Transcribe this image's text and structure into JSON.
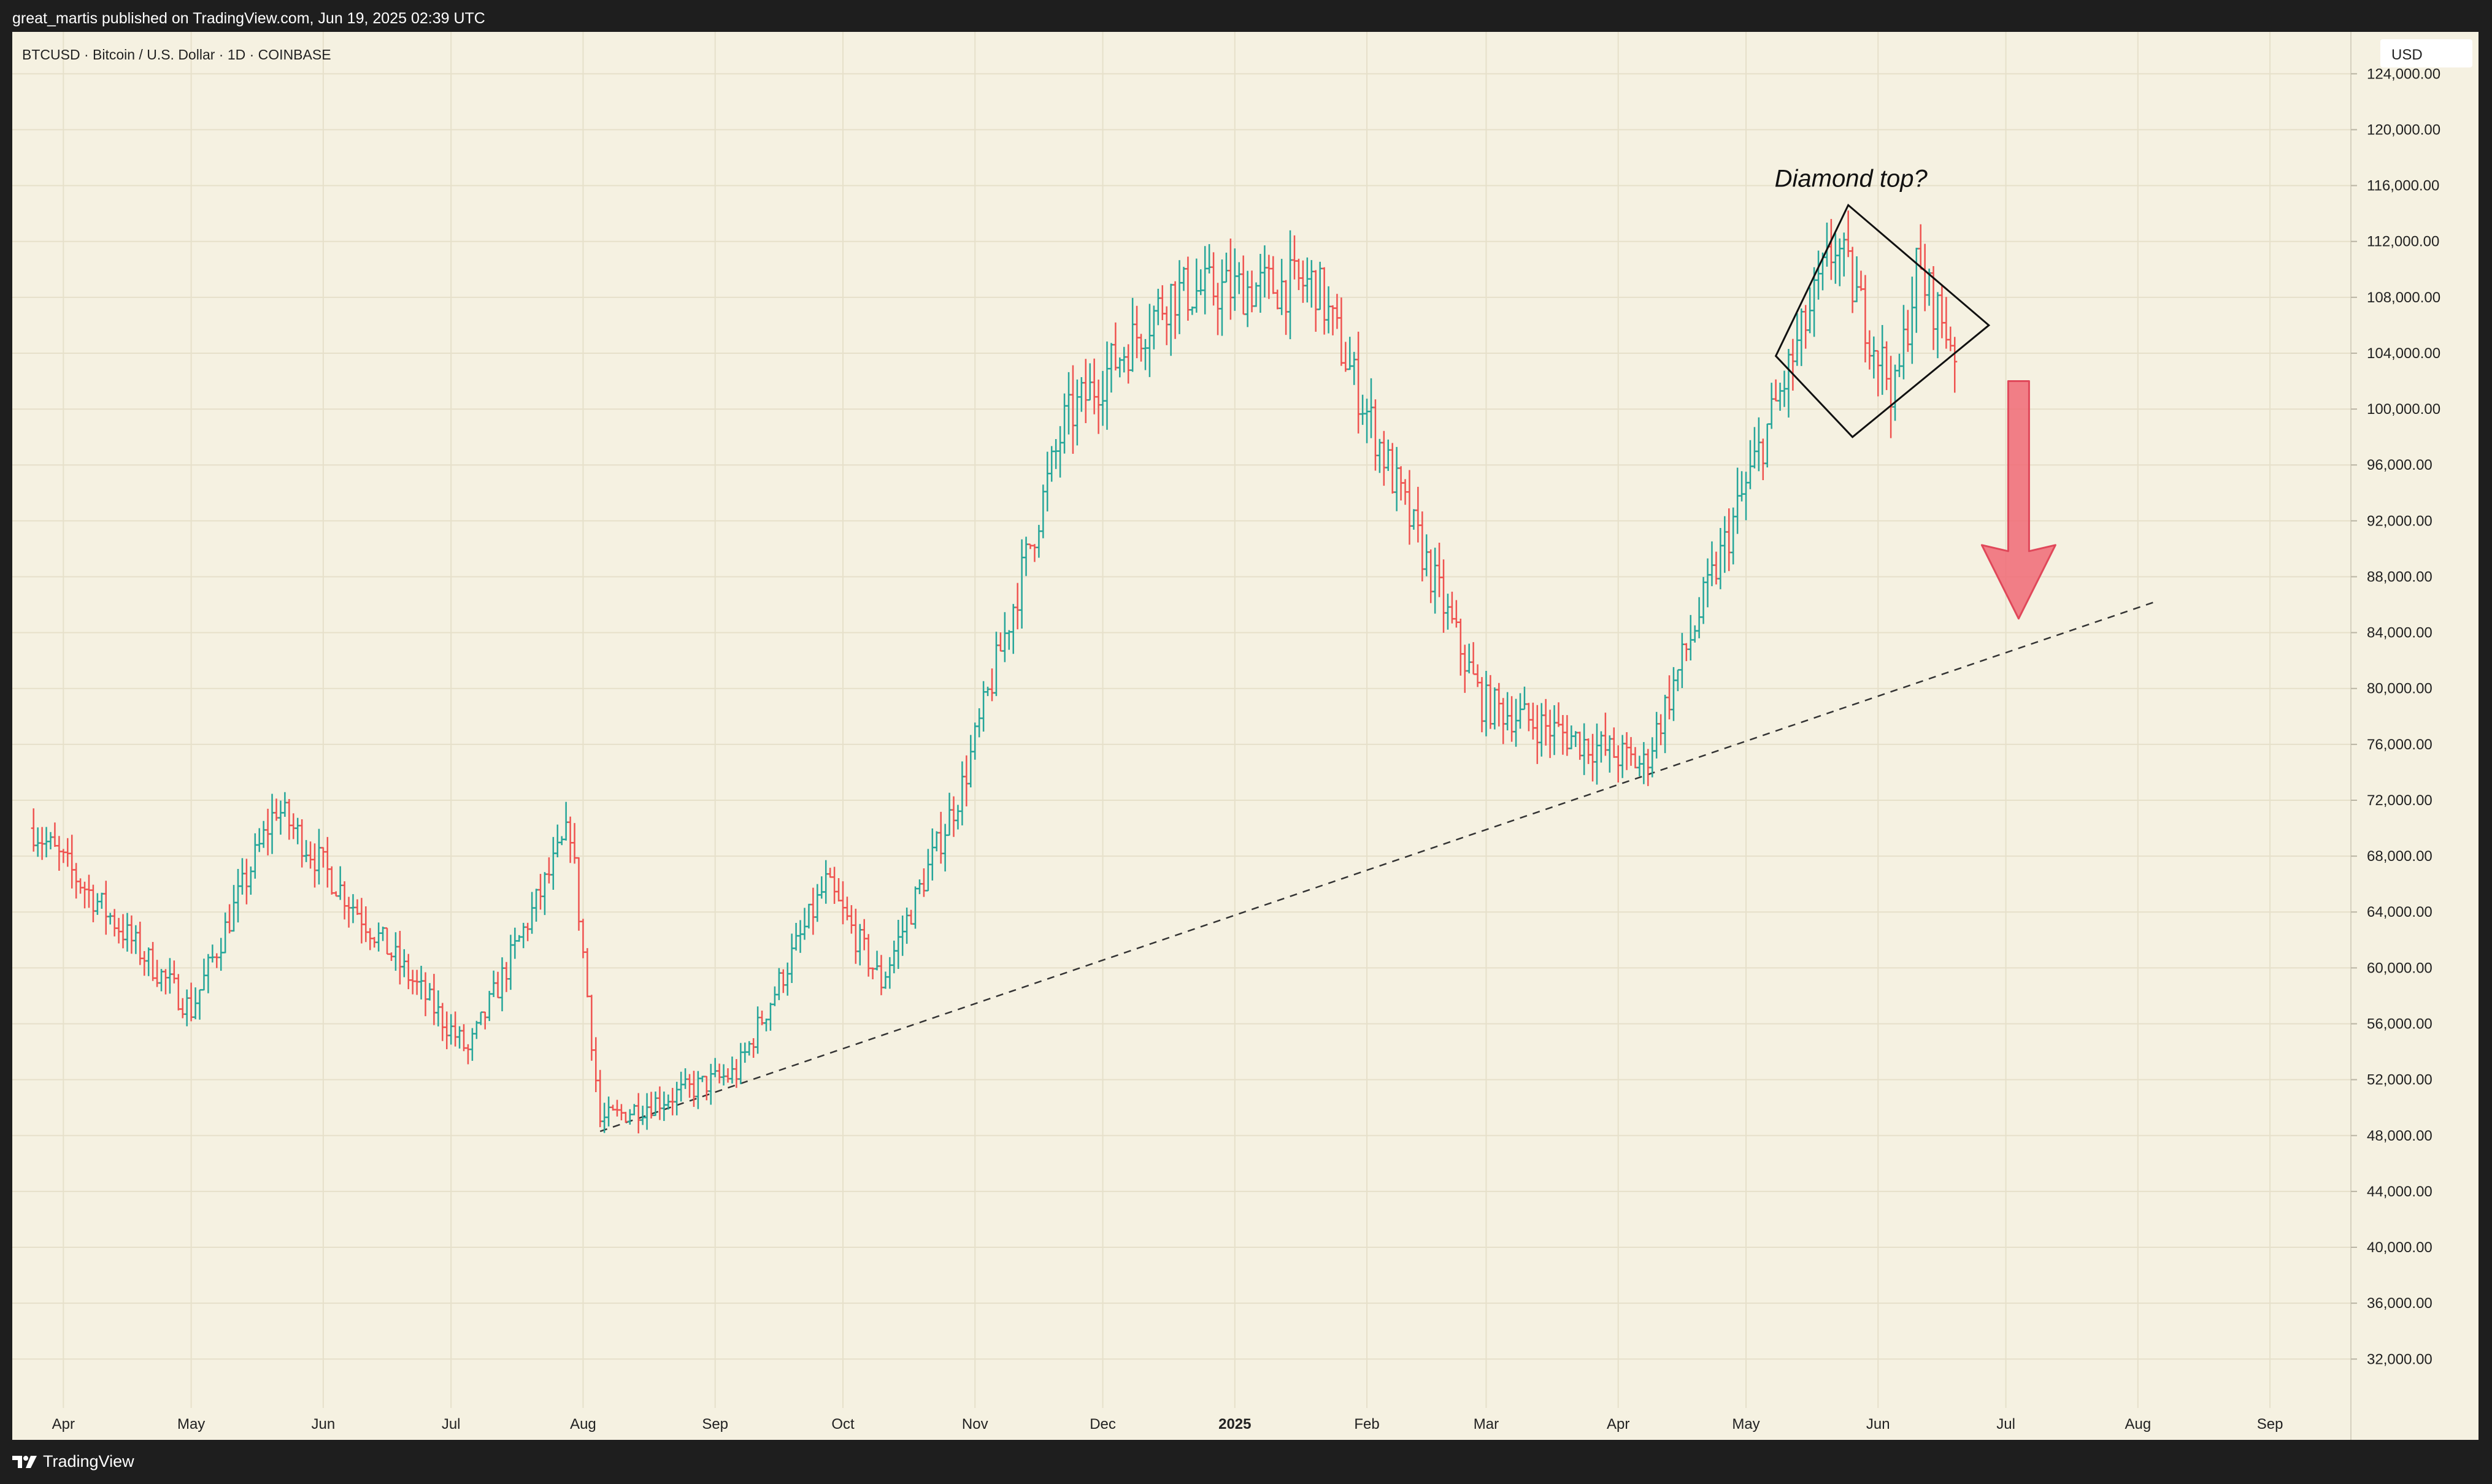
{
  "header": {
    "publish_text": "great_martis published on TradingView.com, Jun 19, 2025 02:39 UTC"
  },
  "footer": {
    "brand": "TradingView",
    "logo_icon": "tradingview-logo-icon"
  },
  "chart_data": {
    "type": "candlestick",
    "title": "BTCUSD · Bitcoin / U.S. Dollar · 1D · COINBASE",
    "currency_label": "USD",
    "y_ticks": [
      "124,000.00",
      "120,000.00",
      "116,000.00",
      "112,000.00",
      "108,000.00",
      "104,000.00",
      "100,000.00",
      "96,000.00",
      "92,000.00",
      "88,000.00",
      "84,000.00",
      "80,000.00",
      "76,000.00",
      "72,000.00",
      "68,000.00",
      "64,000.00",
      "60,000.00",
      "56,000.00",
      "52,000.00",
      "48,000.00",
      "44,000.00",
      "40,000.00",
      "36,000.00",
      "32,000.00"
    ],
    "x_ticks": [
      "Apr",
      "May",
      "Jun",
      "Jul",
      "Aug",
      "Sep",
      "Oct",
      "Nov",
      "Dec",
      "2025",
      "Feb",
      "Mar",
      "Apr",
      "May",
      "Jun",
      "Jul",
      "Aug",
      "Sep"
    ],
    "ylim": [
      28500,
      127000
    ],
    "grid": true,
    "colors": {
      "up": "#26a69a",
      "down": "#ef5350",
      "background": "#f5f1e1",
      "arrow": "#f06a75"
    },
    "annotation": "Diamond top?",
    "key_points": [
      {
        "x": "2024-03-25",
        "y": 70000
      },
      {
        "x": "2024-05-01",
        "y": 57000
      },
      {
        "x": "2024-05-21",
        "y": 71500
      },
      {
        "x": "2024-07-05",
        "y": 54000
      },
      {
        "x": "2024-07-29",
        "y": 70000
      },
      {
        "x": "2024-08-05",
        "y": 49000
      },
      {
        "x": "2024-09-06",
        "y": 52500
      },
      {
        "x": "2024-09-27",
        "y": 66000
      },
      {
        "x": "2024-10-10",
        "y": 59000
      },
      {
        "x": "2024-10-29",
        "y": 73000
      },
      {
        "x": "2024-11-22",
        "y": 99000
      },
      {
        "x": "2024-12-17",
        "y": 108300
      },
      {
        "x": "2025-01-20",
        "y": 109000
      },
      {
        "x": "2025-02-28",
        "y": 79000
      },
      {
        "x": "2025-04-07",
        "y": 74500
      },
      {
        "x": "2025-05-22",
        "y": 111900
      },
      {
        "x": "2025-06-05",
        "y": 101000
      },
      {
        "x": "2025-06-10",
        "y": 110000
      },
      {
        "x": "2025-06-19",
        "y": 104500
      }
    ],
    "trendline": {
      "from": {
        "x": "2024-08-05",
        "y": 48300
      },
      "to": {
        "x": "2025-08-05",
        "y": 86200
      }
    },
    "diamond": [
      {
        "x": "2025-05-08",
        "y": 103800
      },
      {
        "x": "2025-05-25",
        "y": 114600
      },
      {
        "x": "2025-06-27",
        "y": 106000
      },
      {
        "x": "2025-05-26",
        "y": 98000
      }
    ],
    "arrow": {
      "from": {
        "x": "2025-07-04",
        "y": 102000
      },
      "to": {
        "x": "2025-07-04",
        "y": 85000
      }
    }
  }
}
